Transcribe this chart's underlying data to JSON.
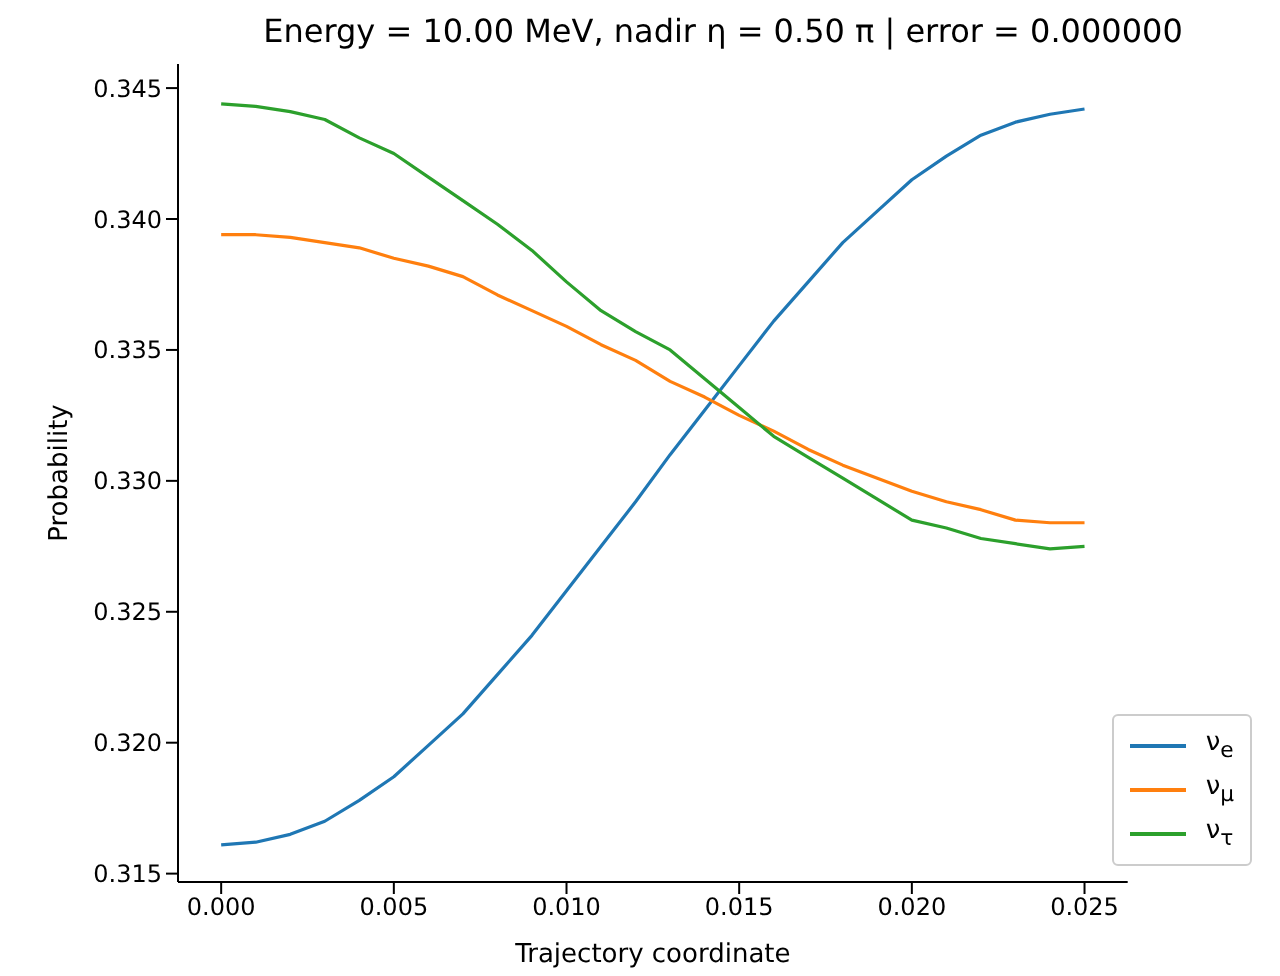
{
  "chart_data": {
    "type": "line",
    "title": "Energy = 10.00 MeV, nadir η = 0.50 π | error = 0.000000",
    "xlabel": "Trajectory coordinate",
    "ylabel": "Probability",
    "x": [
      0,
      0.001,
      0.002,
      0.003,
      0.004,
      0.005,
      0.006,
      0.007,
      0.008,
      0.009,
      0.01,
      0.011,
      0.012,
      0.013,
      0.014,
      0.015,
      0.016,
      0.017,
      0.018,
      0.019,
      0.02,
      0.021,
      0.022,
      0.023,
      0.024,
      0.025
    ],
    "series": [
      {
        "name": "ν$_{e}$",
        "color": "#1f77b4",
        "values": [
          0.3161,
          0.3162,
          0.3165,
          0.317,
          0.3178,
          0.3187,
          0.3199,
          0.3211,
          0.3226,
          0.3241,
          0.3258,
          0.3275,
          0.3292,
          0.331,
          0.3327,
          0.3344,
          0.3361,
          0.3376,
          0.3391,
          0.3403,
          0.3415,
          0.3424,
          0.3432,
          0.3437,
          0.344,
          0.3442
        ]
      },
      {
        "name": "ν$_{μ}$",
        "color": "#ff7f0e",
        "values": [
          0.3394,
          0.3394,
          0.3393,
          0.3391,
          0.3389,
          0.3385,
          0.3382,
          0.3378,
          0.3371,
          0.3365,
          0.3359,
          0.3352,
          0.3346,
          0.3338,
          0.3332,
          0.3325,
          0.3319,
          0.3312,
          0.3306,
          0.3301,
          0.3296,
          0.3292,
          0.3289,
          0.3285,
          0.3284,
          0.3284
        ]
      },
      {
        "name": "ν$_{τ}$",
        "color": "#2ca02c",
        "values": [
          0.3444,
          0.3443,
          0.3441,
          0.3438,
          0.3431,
          0.3425,
          0.3416,
          0.3407,
          0.3398,
          0.3388,
          0.3376,
          0.3365,
          0.3357,
          0.335,
          0.3339,
          0.3328,
          0.3317,
          0.3309,
          0.3301,
          0.3293,
          0.3285,
          0.3282,
          0.3278,
          0.3276,
          0.3274,
          0.3275
        ]
      }
    ],
    "xlim": [
      -0.00125,
      0.02625
    ],
    "xticks": [
      {
        "value": 0,
        "label": "0.000"
      },
      {
        "value": 0.005,
        "label": "0.005"
      },
      {
        "value": 0.01,
        "label": "0.010"
      },
      {
        "value": 0.015,
        "label": "0.015"
      },
      {
        "value": 0.02,
        "label": "0.020"
      },
      {
        "value": 0.025,
        "label": "0.025"
      }
    ],
    "ylim": [
      0.31468,
      0.34592
    ],
    "yticks": [
      {
        "value": 0.315,
        "label": "0.315"
      },
      {
        "value": 0.32,
        "label": "0.320"
      },
      {
        "value": 0.325,
        "label": "0.325"
      },
      {
        "value": 0.33,
        "label": "0.330"
      },
      {
        "value": 0.335,
        "label": "0.335"
      },
      {
        "value": 0.34,
        "label": "0.340"
      },
      {
        "value": 0.345,
        "label": "0.345"
      }
    ],
    "legend": "bottom right",
    "marker": "none",
    "line_style": "solid",
    "grid": false
  }
}
